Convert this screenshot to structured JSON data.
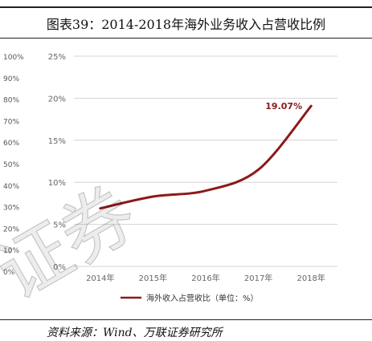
{
  "header": {
    "title": "图表39：2014-2018年海外业务收入占营收比例"
  },
  "footer": {
    "source": "资料来源：Wind、万联证券研究所"
  },
  "watermark": {
    "text": "证券"
  },
  "background_axis": {
    "labels": [
      "100%",
      "90%",
      "80%",
      "70%",
      "60%",
      "50%",
      "40%",
      "30%",
      "20%",
      "10%",
      "0%"
    ]
  },
  "chart_data": {
    "type": "line",
    "categories": [
      "2014年",
      "2015年",
      "2016年",
      "2017年",
      "2018年"
    ],
    "series": [
      {
        "name": "海外收入占营收比（单位：%）",
        "values": [
          6.9,
          8.3,
          9.0,
          11.5,
          19.07
        ]
      }
    ],
    "ylim": [
      0,
      25
    ],
    "yticks": [
      "0%",
      "5%",
      "10%",
      "15%",
      "20%",
      "25%"
    ],
    "annotation": {
      "category": "2018年",
      "text": "19.07%"
    },
    "line_color": "#8b1a1a",
    "grid": true,
    "legend": "bottom"
  }
}
